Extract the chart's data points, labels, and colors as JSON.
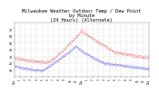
{
  "title": "Milwaukee Weather Outdoor Temp / Dew Point\nby Minute\n(24 Hours) (Alternate)",
  "title_fontsize": 3.8,
  "xlim": [
    0,
    1440
  ],
  "ylim": [
    0,
    80
  ],
  "yticks": [
    10,
    20,
    30,
    40,
    50,
    60,
    70
  ],
  "ytick_labels": [
    "10",
    "20",
    "30",
    "40",
    "50",
    "60",
    "70"
  ],
  "xticks": [
    0,
    60,
    120,
    180,
    240,
    300,
    360,
    420,
    480,
    540,
    600,
    660,
    720,
    780,
    840,
    900,
    960,
    1020,
    1080,
    1140,
    1200,
    1260,
    1320,
    1380,
    1440
  ],
  "xtick_labels": [
    "12a",
    "1",
    "2",
    "3",
    "4",
    "5",
    "6",
    "7",
    "8",
    "9",
    "10",
    "11",
    "12p",
    "1",
    "2",
    "3",
    "4",
    "5",
    "6",
    "7",
    "8",
    "9",
    "10",
    "11",
    "12a"
  ],
  "temp_color": "#dd0000",
  "dew_color": "#0000dd",
  "background_color": "#ffffff",
  "grid_color": "#bbbbbb"
}
